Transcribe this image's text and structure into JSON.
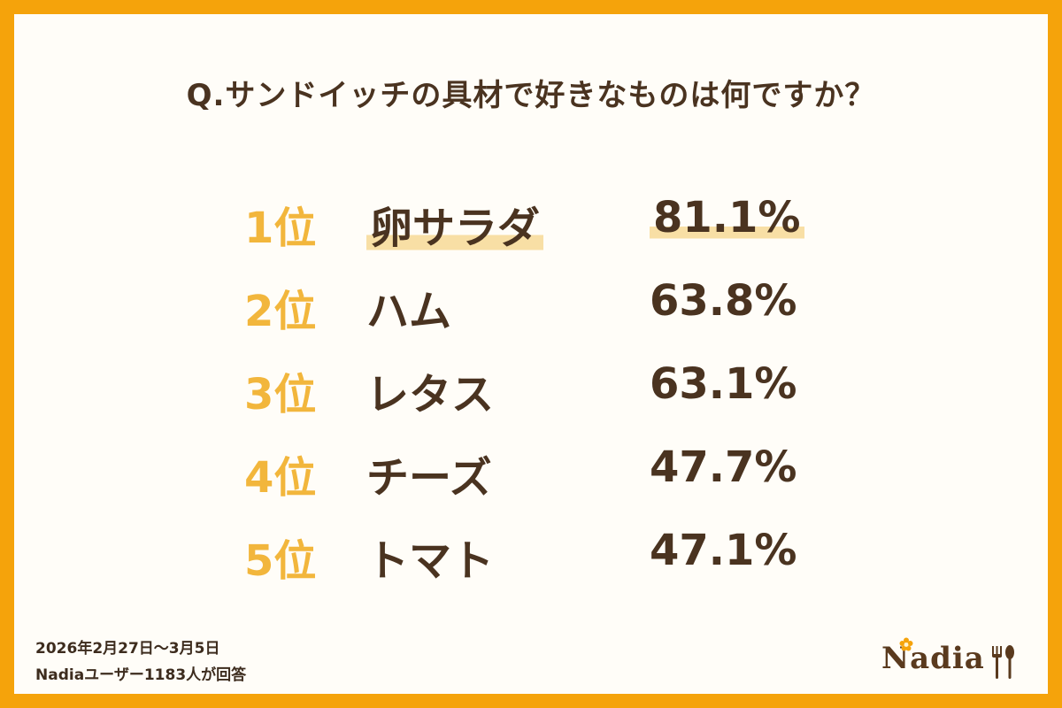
{
  "question": "Q.サンドイッチの具材で好きなものは何ですか？",
  "chart_data": {
    "type": "table",
    "columns": [
      "rank",
      "item",
      "percent"
    ],
    "rows": [
      {
        "rank": "1位",
        "item": "卵サラダ",
        "percent_label": "81.1%",
        "percent": 81.1
      },
      {
        "rank": "2位",
        "item": "ハム",
        "percent_label": "63.8%",
        "percent": 63.8
      },
      {
        "rank": "3位",
        "item": "レタス",
        "percent_label": "63.1%",
        "percent": 63.1
      },
      {
        "rank": "4位",
        "item": "チーズ",
        "percent_label": "47.7%",
        "percent": 47.7
      },
      {
        "rank": "5位",
        "item": "トマト",
        "percent_label": "47.1%",
        "percent": 47.1
      }
    ]
  },
  "footnote": {
    "period": "2026年2月27日〜3月5日",
    "respondents": "Nadiaユーザー1183人が回答"
  },
  "logo": {
    "text": "Nadia"
  },
  "colors": {
    "frame": "#f5a30b",
    "rank": "#f2b63c",
    "text": "#4a3320",
    "highlight": "#f8dfa5"
  }
}
